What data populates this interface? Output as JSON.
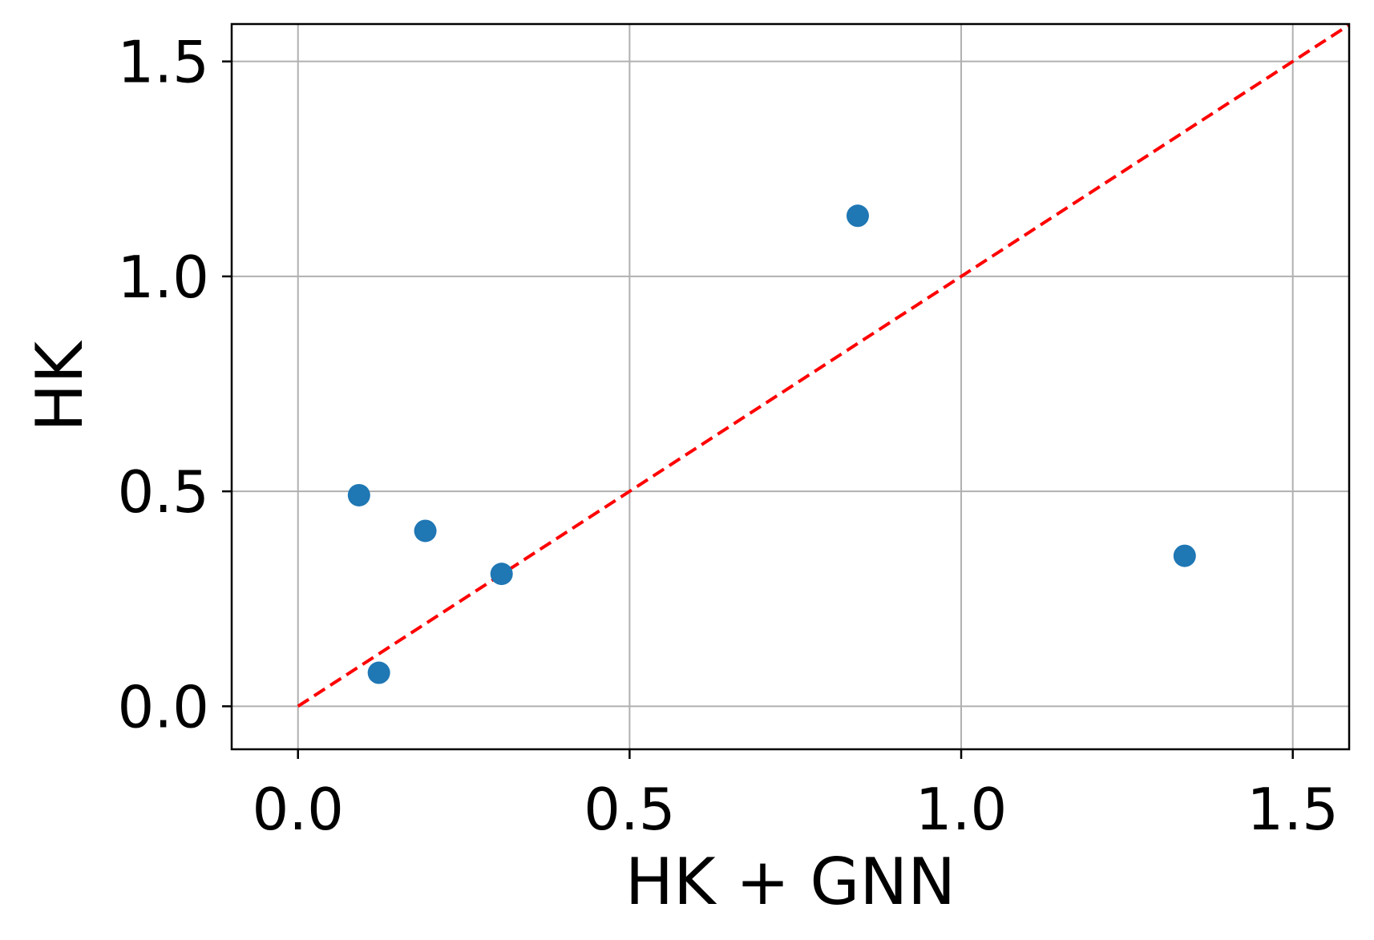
{
  "chart_data": {
    "type": "scatter",
    "title": "",
    "xlabel": "HK + GNN",
    "ylabel": "HK",
    "xlim": [
      -0.1,
      1.585
    ],
    "ylim": [
      -0.1,
      1.587
    ],
    "xticks": [
      0.0,
      0.5,
      1.0,
      1.5
    ],
    "yticks": [
      0.0,
      0.5,
      1.0,
      1.5
    ],
    "xtick_labels": [
      "0.0",
      "0.5",
      "1.0",
      "1.5"
    ],
    "ytick_labels": [
      "0.0",
      "0.5",
      "1.0",
      "1.5"
    ],
    "grid": true,
    "series": [
      {
        "points": [
          {
            "x": 0.092,
            "y": 0.491
          },
          {
            "x": 0.122,
            "y": 0.078
          },
          {
            "x": 0.192,
            "y": 0.408
          },
          {
            "x": 0.307,
            "y": 0.308
          },
          {
            "x": 0.844,
            "y": 1.141
          },
          {
            "x": 1.337,
            "y": 0.35
          }
        ],
        "color": "#1f77b4"
      }
    ],
    "reference_line": {
      "x": [
        0,
        1.6
      ],
      "y": [
        0,
        1.6
      ],
      "color": "#ff0000",
      "style": "dashed"
    }
  }
}
